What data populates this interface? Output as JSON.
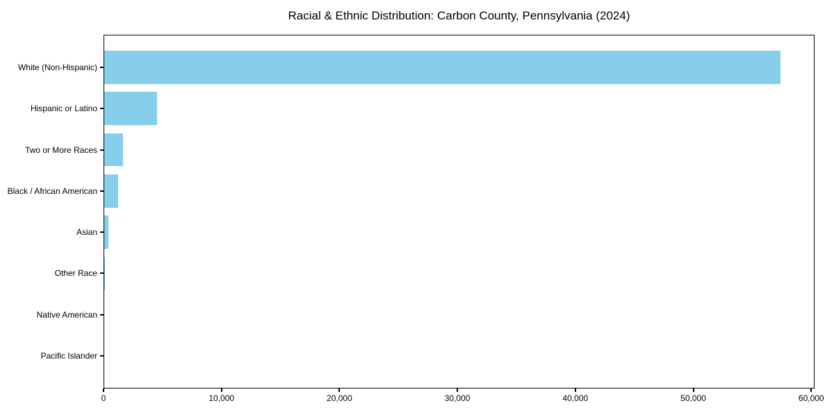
{
  "chart_data": {
    "type": "bar",
    "orientation": "horizontal",
    "title": "Racial & Ethnic Distribution: Carbon County, Pennsylvania (2024)",
    "categories": [
      "White (Non-Hispanic)",
      "Hispanic or Latino",
      "Two or More Races",
      "Black / African American",
      "Asian",
      "Other Race",
      "Native American",
      "Pacific Islander"
    ],
    "values": [
      57410,
      4530,
      1650,
      1240,
      430,
      100,
      40,
      15
    ],
    "xlabel": "",
    "ylabel": "",
    "xlim": [
      0,
      60280
    ],
    "x_ticks": [
      0,
      10000,
      20000,
      30000,
      40000,
      50000,
      60000
    ],
    "x_tick_labels": [
      "0",
      "10,000",
      "20,000",
      "30,000",
      "40,000",
      "50,000",
      "60,000"
    ],
    "bar_color": "#87CEEB",
    "axis_color": "#000000",
    "background_color": "#ffffff",
    "grid": false,
    "legend_position": "none",
    "bar_relative_height": 0.8
  }
}
